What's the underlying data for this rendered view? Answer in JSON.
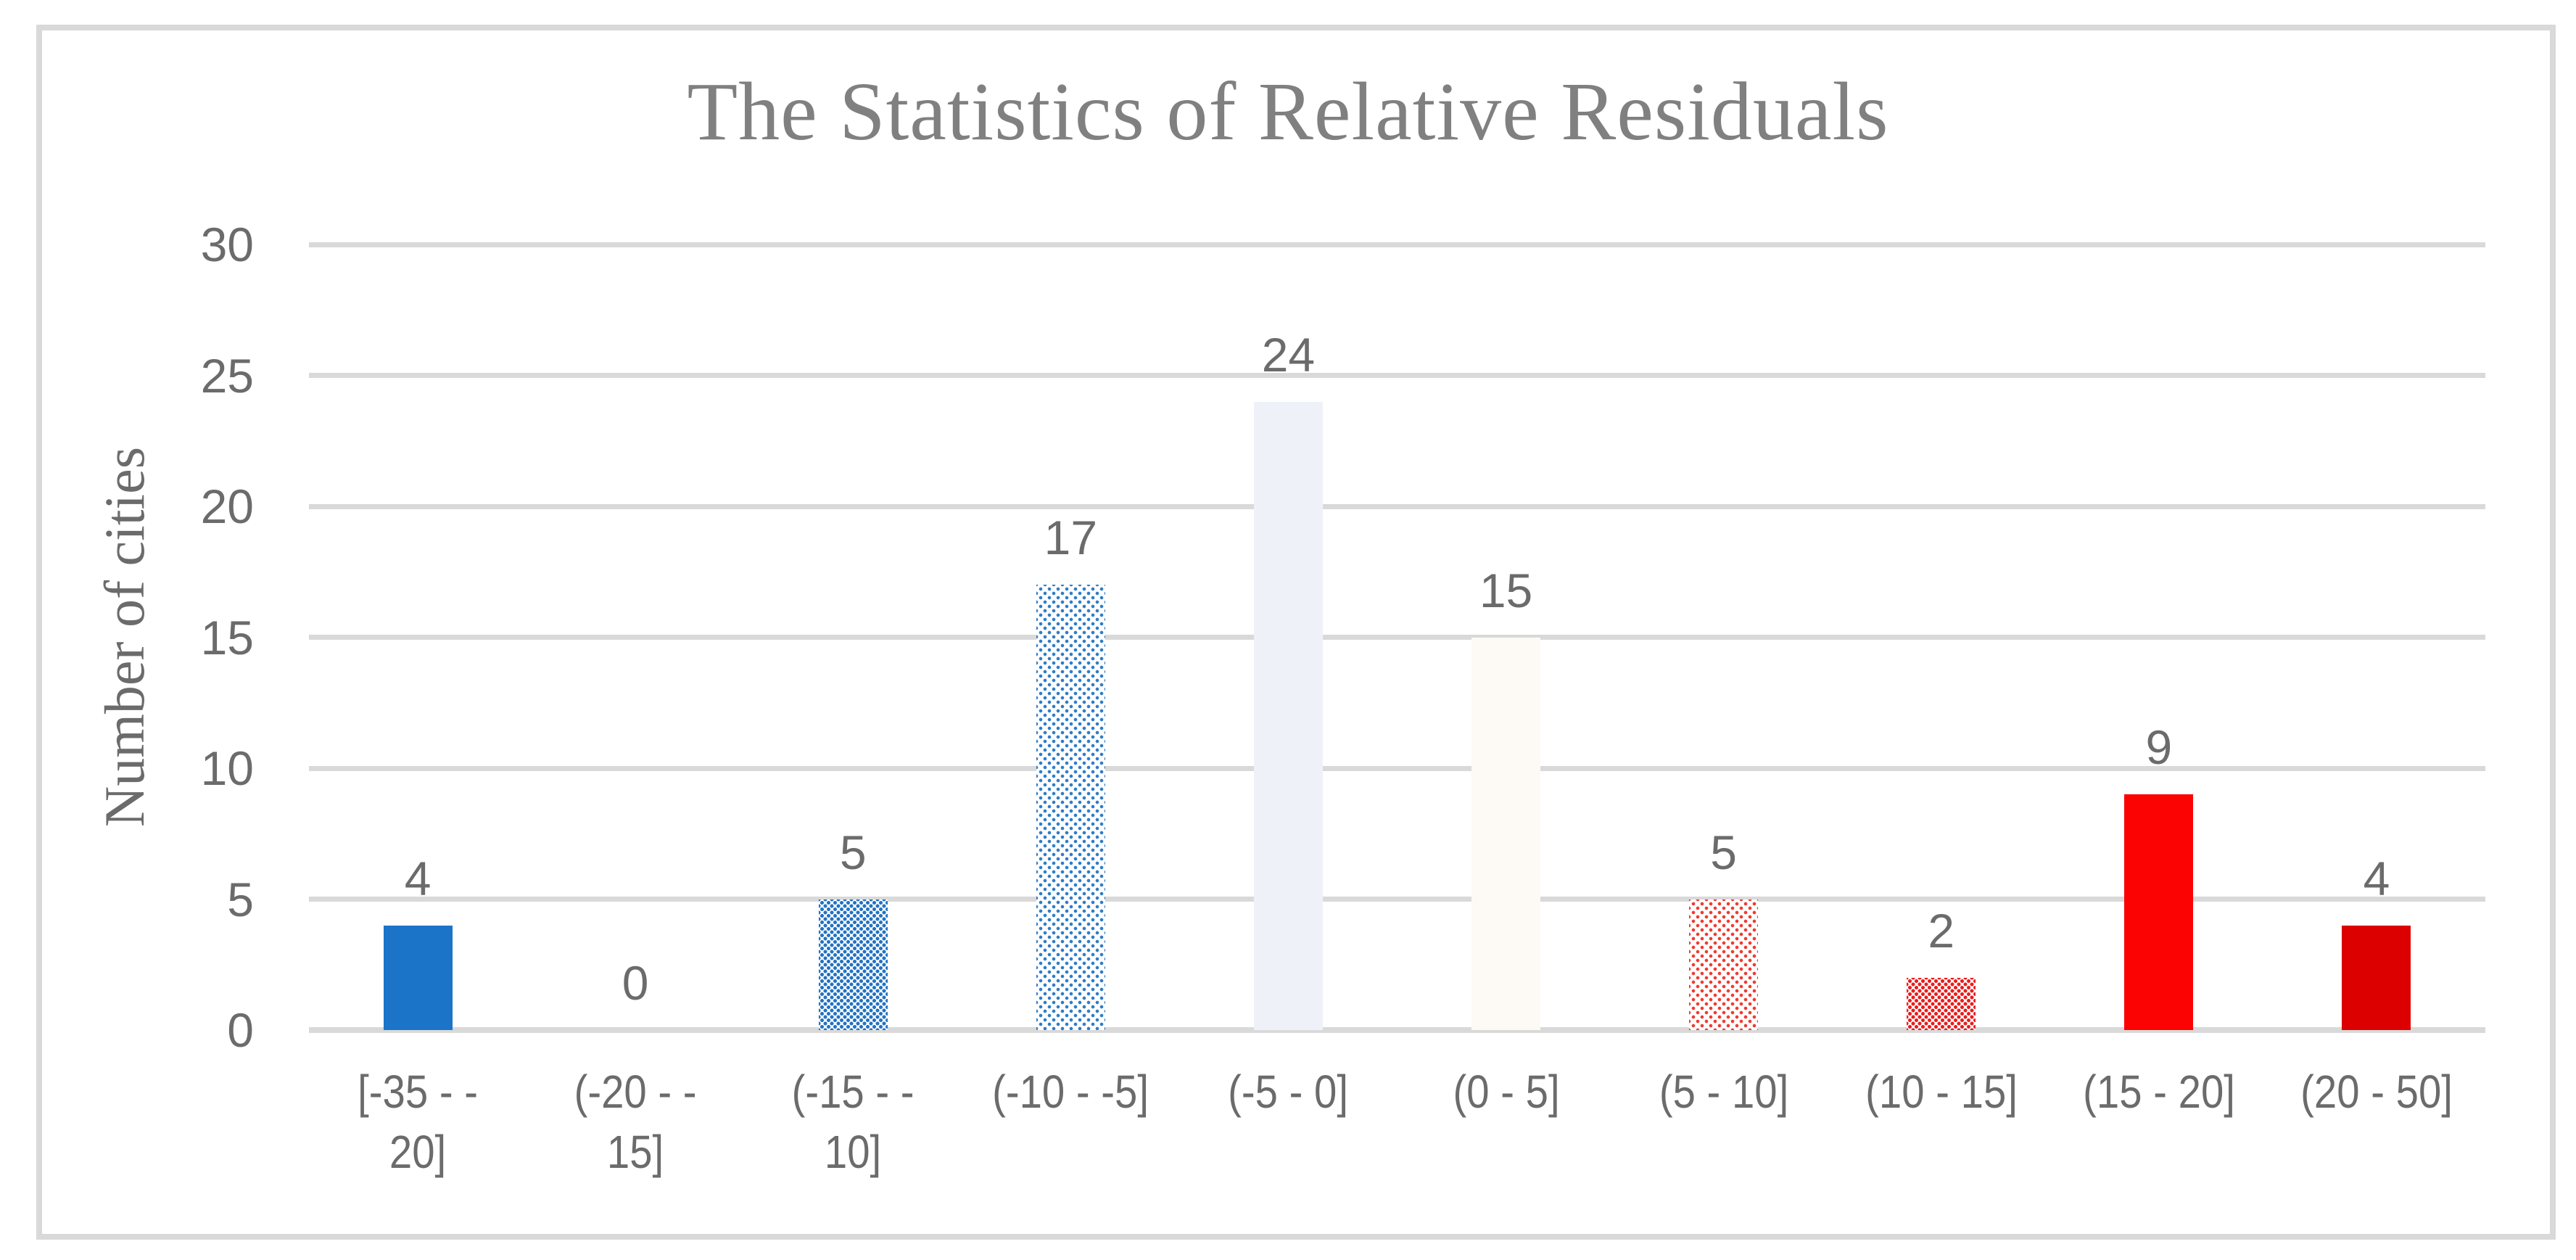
{
  "figure": {
    "background_color": "#ffffff",
    "border_color": "#d9d9d9"
  },
  "colors": {
    "title_text": "#808080",
    "label_text": "#6b6b6b",
    "gridline": "#d9d9d9",
    "blue_solid": "#1b74c8",
    "blue_dense_dots": "#2272c3",
    "blue_sparse_dots": "#2f7cc8",
    "pale_blue": "#eef2f8",
    "pale_pink": "#fdf9f5",
    "red_sparse_dots": "#ef3b30",
    "red_dense_dots": "#ea1c1c",
    "red_solid": "#fb0303",
    "dark_red_solid": "#dc0000"
  },
  "chart_data": {
    "type": "bar",
    "title": "The Statistics of Relative Residuals",
    "xlabel": "",
    "ylabel": "Number of cities",
    "ylim": [
      0,
      30
    ],
    "yticks": [
      0,
      5,
      10,
      15,
      20,
      25,
      30
    ],
    "grid": true,
    "legend": false,
    "categories": [
      "[-35 - -20]",
      "(-20 - -15]",
      "(-15 - -10]",
      "(-10 - -5]",
      "(-5 - 0]",
      "(0 - 5]",
      "(5 - 10]",
      "(10 - 15]",
      "(15 - 20]",
      "(20 - 50]"
    ],
    "values": [
      4,
      0,
      5,
      17,
      24,
      15,
      5,
      2,
      9,
      4
    ],
    "data_labels": [
      "4",
      "0",
      "5",
      "17",
      "24",
      "15",
      "5",
      "2",
      "9",
      "4"
    ],
    "bars": [
      {
        "category": "[-35 - -20]",
        "display_label": "[-35 - -\n20]",
        "value": 4,
        "data_label": "4",
        "fill": "solid",
        "color": "#1b74c8"
      },
      {
        "category": "(-20 - -15]",
        "display_label": "(-20 - -\n15]",
        "value": 0,
        "data_label": "0",
        "fill": "none",
        "color": ""
      },
      {
        "category": "(-15 - -10]",
        "display_label": "(-15 - -\n10]",
        "value": 5,
        "data_label": "5",
        "fill": "dots-dense",
        "color": "#2272c3"
      },
      {
        "category": "(-10 - -5]",
        "display_label": "(-10 - -5]",
        "value": 17,
        "data_label": "17",
        "fill": "dots-sparse",
        "color": "#2f7cc8"
      },
      {
        "category": "(-5 - 0]",
        "display_label": "(-5 - 0]",
        "value": 24,
        "data_label": "24",
        "fill": "solid",
        "color": "#eef2f8"
      },
      {
        "category": "(0 - 5]",
        "display_label": "(0 - 5]",
        "value": 15,
        "data_label": "15",
        "fill": "solid",
        "color": "#fdf9f5"
      },
      {
        "category": "(5 - 10]",
        "display_label": "(5 - 10]",
        "value": 5,
        "data_label": "5",
        "fill": "dots-sparse",
        "color": "#ef3b30"
      },
      {
        "category": "(10 - 15]",
        "display_label": "(10 - 15]",
        "value": 2,
        "data_label": "2",
        "fill": "dots-dense",
        "color": "#ea1c1c"
      },
      {
        "category": "(15 - 20]",
        "display_label": "(15 - 20]",
        "value": 9,
        "data_label": "9",
        "fill": "solid",
        "color": "#fb0303"
      },
      {
        "category": "(20 - 50]",
        "display_label": "(20 - 50]",
        "value": 4,
        "data_label": "4",
        "fill": "solid",
        "color": "#dc0000"
      }
    ]
  }
}
